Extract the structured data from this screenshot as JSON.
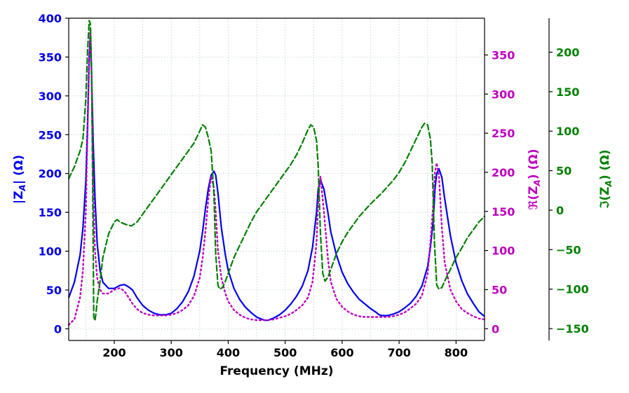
{
  "chart_data": {
    "type": "line",
    "xlabel": "Frequency (MHz)",
    "x_ticks": [
      200,
      300,
      400,
      500,
      600,
      700,
      800
    ],
    "xlim": [
      120,
      850
    ],
    "grid": true,
    "axes": {
      "left": {
        "label": "|Z_A| (Ω)",
        "label_parts": [
          "|Z",
          "A",
          "| (Ω)"
        ],
        "color": "#0000ee",
        "ylim": [
          -15,
          400
        ],
        "ticks": [
          0,
          50,
          100,
          150,
          200,
          250,
          300,
          350,
          400
        ]
      },
      "right1": {
        "label": "ℜ(Z_A) (Ω)",
        "label_parts": [
          "ℜ(Z",
          "A",
          ") (Ω)"
        ],
        "color": "#bf00bf",
        "ylim": [
          -15,
          397
        ],
        "ticks": [
          0,
          50,
          100,
          150,
          200,
          250,
          300,
          350
        ]
      },
      "right2": {
        "label": "ℑ(Z_A) (Ω)",
        "label_parts": [
          "ℑ(Z",
          "A",
          ") (Ω)"
        ],
        "color": "#008000",
        "ylim": [
          -165,
          243
        ],
        "ticks": [
          -150,
          -100,
          -50,
          0,
          50,
          100,
          150,
          200
        ]
      }
    },
    "series": [
      {
        "axis": "left",
        "style": "solid",
        "color": "#0000ee",
        "x": [
          120,
          130,
          140,
          145,
          150,
          153,
          156,
          158,
          160,
          163,
          166,
          170,
          175,
          180,
          190,
          200,
          210,
          218,
          225,
          232,
          240,
          250,
          260,
          270,
          280,
          290,
          300,
          310,
          320,
          330,
          340,
          350,
          355,
          360,
          365,
          370,
          375,
          378,
          382,
          388,
          395,
          400,
          410,
          420,
          430,
          440,
          450,
          460,
          465,
          470,
          480,
          490,
          500,
          510,
          520,
          530,
          540,
          548,
          555,
          558,
          562,
          568,
          575,
          580,
          590,
          600,
          610,
          620,
          630,
          640,
          650,
          660,
          665,
          670,
          680,
          690,
          700,
          710,
          720,
          730,
          740,
          750,
          755,
          760,
          763,
          766,
          770,
          775,
          780,
          790,
          800,
          810,
          820,
          830,
          840,
          850
        ],
        "y": [
          40,
          60,
          95,
          130,
          190,
          260,
          350,
          380,
          330,
          240,
          170,
          110,
          75,
          60,
          52,
          52,
          56,
          57,
          54,
          50,
          40,
          30,
          24,
          20,
          18,
          18,
          20,
          26,
          35,
          48,
          68,
          100,
          125,
          155,
          180,
          198,
          203,
          198,
          175,
          130,
          95,
          75,
          52,
          38,
          28,
          21,
          15,
          12,
          11,
          11,
          14,
          18,
          24,
          32,
          42,
          55,
          75,
          105,
          150,
          180,
          192,
          180,
          150,
          125,
          95,
          73,
          58,
          47,
          38,
          32,
          26,
          21,
          18,
          17,
          17,
          19,
          22,
          27,
          33,
          42,
          55,
          80,
          105,
          140,
          180,
          200,
          206,
          195,
          168,
          120,
          85,
          62,
          45,
          33,
          22,
          16
        ]
      },
      {
        "axis": "right1",
        "style": "dotted",
        "color": "#bf00bf",
        "x": [
          120,
          130,
          140,
          145,
          150,
          153,
          156,
          158,
          160,
          163,
          166,
          170,
          175,
          180,
          190,
          200,
          210,
          218,
          225,
          232,
          240,
          250,
          260,
          270,
          280,
          290,
          300,
          310,
          320,
          330,
          340,
          350,
          355,
          360,
          365,
          370,
          375,
          378,
          382,
          388,
          395,
          400,
          410,
          420,
          430,
          440,
          450,
          460,
          465,
          470,
          480,
          490,
          500,
          510,
          520,
          530,
          540,
          548,
          555,
          558,
          562,
          568,
          575,
          580,
          590,
          600,
          610,
          620,
          630,
          640,
          650,
          660,
          665,
          670,
          680,
          690,
          700,
          710,
          720,
          730,
          740,
          750,
          755,
          760,
          763,
          766,
          770,
          775,
          780,
          790,
          800,
          810,
          820,
          830,
          840,
          850
        ],
        "y": [
          5,
          12,
          40,
          75,
          150,
          250,
          345,
          382,
          330,
          180,
          100,
          65,
          50,
          45,
          45,
          50,
          52,
          48,
          40,
          32,
          25,
          20,
          18,
          17,
          17,
          17,
          18,
          20,
          24,
          30,
          42,
          65,
          90,
          125,
          165,
          195,
          180,
          150,
          100,
          65,
          45,
          35,
          24,
          18,
          14,
          12,
          11,
          11,
          11,
          11,
          12,
          14,
          16,
          19,
          24,
          30,
          40,
          60,
          110,
          165,
          195,
          150,
          90,
          60,
          38,
          28,
          22,
          18,
          16,
          15,
          15,
          15,
          15,
          15,
          15,
          16,
          18,
          21,
          26,
          32,
          42,
          70,
          110,
          160,
          200,
          212,
          195,
          130,
          85,
          50,
          35,
          25,
          20,
          16,
          13,
          12
        ]
      },
      {
        "axis": "right2",
        "style": "dashed",
        "color": "#008000",
        "x": [
          120,
          130,
          140,
          145,
          150,
          153,
          156,
          158,
          160,
          162,
          164,
          166,
          168,
          170,
          175,
          180,
          190,
          200,
          205,
          210,
          220,
          230,
          240,
          250,
          260,
          270,
          280,
          290,
          300,
          310,
          320,
          330,
          340,
          350,
          355,
          360,
          365,
          370,
          375,
          378,
          382,
          385,
          390,
          395,
          400,
          410,
          420,
          430,
          440,
          450,
          460,
          470,
          480,
          490,
          500,
          510,
          520,
          530,
          540,
          545,
          550,
          555,
          558,
          562,
          566,
          570,
          575,
          580,
          590,
          600,
          610,
          620,
          630,
          640,
          650,
          660,
          670,
          680,
          690,
          700,
          710,
          720,
          730,
          740,
          745,
          750,
          755,
          758,
          762,
          766,
          770,
          775,
          780,
          790,
          800,
          810,
          820,
          830,
          840,
          850
        ],
        "y": [
          40,
          55,
          75,
          90,
          140,
          200,
          240,
          236,
          180,
          40,
          -135,
          -140,
          -130,
          -115,
          -90,
          -60,
          -30,
          -15,
          -12,
          -15,
          -18,
          -20,
          -15,
          -5,
          5,
          15,
          25,
          35,
          45,
          55,
          65,
          75,
          85,
          100,
          108,
          105,
          92,
          75,
          20,
          -55,
          -95,
          -100,
          -98,
          -90,
          -80,
          -60,
          -45,
          -30,
          -15,
          -2,
          8,
          18,
          28,
          38,
          48,
          58,
          70,
          85,
          102,
          108,
          105,
          88,
          55,
          -30,
          -80,
          -90,
          -85,
          -75,
          -55,
          -40,
          -28,
          -18,
          -8,
          0,
          8,
          15,
          22,
          30,
          38,
          48,
          60,
          75,
          90,
          105,
          110,
          108,
          90,
          60,
          -40,
          -95,
          -100,
          -98,
          -90,
          -75,
          -60,
          -48,
          -35,
          -25,
          -15,
          -8
        ]
      }
    ]
  }
}
